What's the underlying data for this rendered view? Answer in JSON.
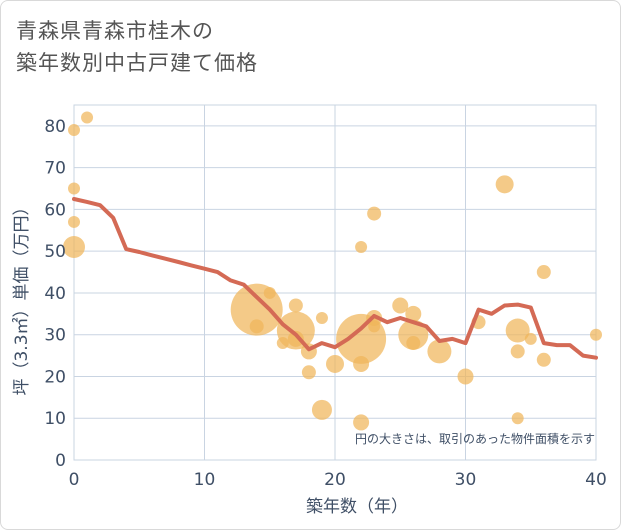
{
  "title": {
    "line1": "青森県青森市桂木の",
    "line2": "築年数別中古戸建て価格"
  },
  "chart_data": {
    "type": "scatter",
    "title": "青森県青森市桂木の築年数別中古戸建て価格",
    "xlabel": "築年数（年）",
    "ylabel": "坪（3.3㎡）単価（万円）",
    "xlim": [
      0,
      40
    ],
    "ylim": [
      0,
      85
    ],
    "x_ticks": [
      "0",
      "10",
      "20",
      "30",
      "40"
    ],
    "y_ticks": [
      "0",
      "10",
      "20",
      "30",
      "40",
      "50",
      "60",
      "70",
      "80"
    ],
    "note": "円の大きさは、取引のあった物件面積を示す",
    "colors": {
      "bubble": "#f0b65a",
      "trend": "#d46a55",
      "grid": "#c9d4e2"
    },
    "bubbles": [
      {
        "x": 0,
        "y": 79,
        "size": 6
      },
      {
        "x": 1,
        "y": 82,
        "size": 6
      },
      {
        "x": 0,
        "y": 65,
        "size": 6
      },
      {
        "x": 0,
        "y": 57,
        "size": 6
      },
      {
        "x": 0,
        "y": 51,
        "size": 11
      },
      {
        "x": 14,
        "y": 36,
        "size": 26
      },
      {
        "x": 14,
        "y": 32,
        "size": 7
      },
      {
        "x": 15,
        "y": 40,
        "size": 6
      },
      {
        "x": 16,
        "y": 28,
        "size": 6
      },
      {
        "x": 17,
        "y": 37,
        "size": 7
      },
      {
        "x": 17,
        "y": 31,
        "size": 19
      },
      {
        "x": 17,
        "y": 29,
        "size": 8
      },
      {
        "x": 18,
        "y": 26,
        "size": 8
      },
      {
        "x": 18,
        "y": 21,
        "size": 7
      },
      {
        "x": 19,
        "y": 34,
        "size": 6
      },
      {
        "x": 19,
        "y": 12,
        "size": 10
      },
      {
        "x": 20,
        "y": 23,
        "size": 9
      },
      {
        "x": 22,
        "y": 29,
        "size": 25
      },
      {
        "x": 22,
        "y": 51,
        "size": 6
      },
      {
        "x": 22,
        "y": 23,
        "size": 8
      },
      {
        "x": 22,
        "y": 9,
        "size": 8
      },
      {
        "x": 23,
        "y": 59,
        "size": 7
      },
      {
        "x": 23,
        "y": 34,
        "size": 8
      },
      {
        "x": 23,
        "y": 32,
        "size": 6
      },
      {
        "x": 25,
        "y": 37,
        "size": 8
      },
      {
        "x": 26,
        "y": 35,
        "size": 8
      },
      {
        "x": 26,
        "y": 30,
        "size": 15
      },
      {
        "x": 26,
        "y": 28,
        "size": 7
      },
      {
        "x": 28,
        "y": 26,
        "size": 12
      },
      {
        "x": 30,
        "y": 20,
        "size": 8
      },
      {
        "x": 31,
        "y": 33,
        "size": 7
      },
      {
        "x": 33,
        "y": 66,
        "size": 9
      },
      {
        "x": 34,
        "y": 31,
        "size": 12
      },
      {
        "x": 34,
        "y": 26,
        "size": 7
      },
      {
        "x": 34,
        "y": 10,
        "size": 6
      },
      {
        "x": 35,
        "y": 29,
        "size": 6
      },
      {
        "x": 36,
        "y": 45,
        "size": 7
      },
      {
        "x": 36,
        "y": 24,
        "size": 7
      },
      {
        "x": 40,
        "y": 30,
        "size": 6
      }
    ],
    "trend": {
      "x": [
        0,
        1,
        2,
        3,
        4,
        5,
        6,
        7,
        8,
        9,
        10,
        11,
        12,
        13,
        14,
        15,
        16,
        17,
        18,
        19,
        20,
        21,
        22,
        23,
        24,
        25,
        26,
        27,
        28,
        29,
        30,
        31,
        32,
        33,
        34,
        35,
        36,
        37,
        38,
        39,
        40
      ],
      "y": [
        62.5,
        61.8,
        61.0,
        58.0,
        50.5,
        49.8,
        49.0,
        48.2,
        47.4,
        46.6,
        45.8,
        45.0,
        43.0,
        42.0,
        39.0,
        36.0,
        32.5,
        30.0,
        26.5,
        28.0,
        27.0,
        29.0,
        31.5,
        34.5,
        33.0,
        34.0,
        33.0,
        32.0,
        28.5,
        29.0,
        28.0,
        36.0,
        35.0,
        37.0,
        37.2,
        36.5,
        28.0,
        27.5,
        27.5,
        25.0,
        24.5
      ]
    }
  }
}
